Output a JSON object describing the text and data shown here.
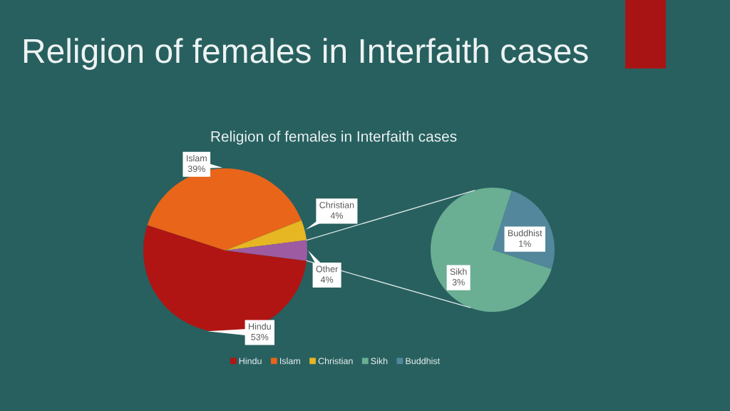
{
  "chart_data": [
    {
      "type": "pie",
      "title": "Religion of females in Interfaith cases",
      "subtitle": "Religion of females in Interfaith cases",
      "categories": [
        "Hindu",
        "Islam",
        "Christian",
        null
      ],
      "values": [
        53,
        39,
        4,
        4
      ],
      "colors": [
        "#b01513",
        "#e8651a",
        "#e7b623",
        "#9d5ba2"
      ],
      "value_labels": [
        "Hindu\n53%",
        "Islam\n39%",
        "Christian\n4%",
        "Other\n4%"
      ],
      "legend": "bottom"
    },
    {
      "type": "pie",
      "categories": [
        "Sikh",
        "Buddhist"
      ],
      "values": [
        3,
        1
      ],
      "colors": [
        "#6aae93",
        "#53879c"
      ],
      "value_labels": [
        "Sikh\n3%",
        "Buddhist\n1%"
      ],
      "legend": "bottom"
    }
  ]
}
